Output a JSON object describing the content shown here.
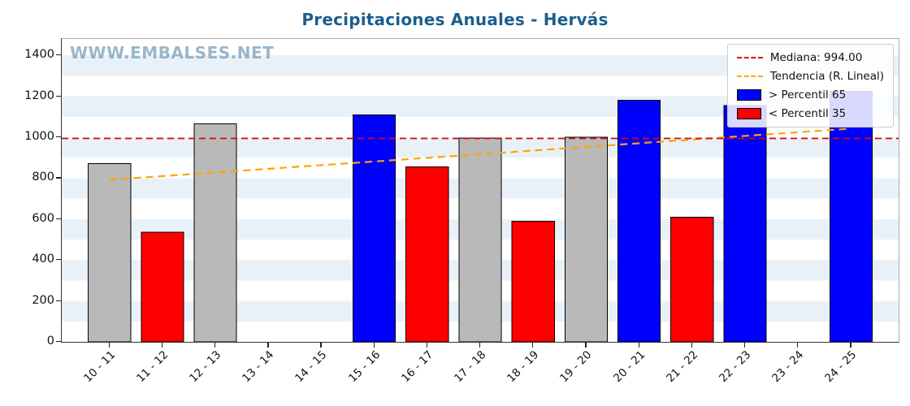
{
  "watermark": "WWW.EMBALSES.NET",
  "colors": {
    "title": "#1b5e8f",
    "stripe": "#e9f1f8",
    "watermark": "#5d8aad"
  },
  "chart_data": {
    "type": "bar",
    "title": "Precipitaciones Anuales - Hervás",
    "categories": [
      "10 - 11",
      "11 - 12",
      "12 - 13",
      "13 - 14",
      "14 - 15",
      "15 - 16",
      "16 - 17",
      "17 - 18",
      "18 - 19",
      "19 - 20",
      "20 - 21",
      "21 - 22",
      "22 - 23",
      "23 - 24",
      "24 - 25"
    ],
    "values": [
      870,
      535,
      1065,
      null,
      null,
      1110,
      855,
      995,
      590,
      1000,
      1180,
      610,
      1155,
      null,
      1225
    ],
    "bar_colors": [
      "gray",
      "red",
      "gray",
      null,
      null,
      "blue",
      "red",
      "gray",
      "red",
      "gray",
      "blue",
      "red",
      "blue",
      null,
      "blue"
    ],
    "color_map": {
      "blue": "#0000ff",
      "red": "#ff0000",
      "gray": "#b9b9b9"
    },
    "bar_edge_color": "#000000",
    "median": {
      "label": "Mediana: 994.00",
      "value": 994.0,
      "color": "#e10600"
    },
    "trend": {
      "label": "Tendencia (R. Lineal)",
      "color": "#ffa500",
      "start_value": 792,
      "end_value": 1042
    },
    "legend": [
      {
        "label": "Mediana: 994.00",
        "type": "line",
        "color": "#e10600"
      },
      {
        "label": "Tendencia (R. Lineal)",
        "type": "line",
        "color": "#ffa500"
      },
      {
        "label": "> Percentil 65",
        "type": "patch",
        "color": "#0000ff"
      },
      {
        "label": "< Percentil 35",
        "type": "patch",
        "color": "#ff0000"
      }
    ],
    "xlabel": "",
    "ylabel": "",
    "yticks": [
      0,
      200,
      400,
      600,
      800,
      1000,
      1200,
      1400
    ],
    "ylim": [
      0,
      1480
    ],
    "grid": true,
    "legend_position": "upper right"
  }
}
